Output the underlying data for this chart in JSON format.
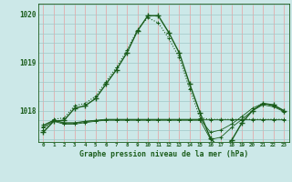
{
  "title": "Graphe pression niveau de la mer (hPa)",
  "background_color": "#cce8e8",
  "line_color": "#1a5c1a",
  "grid_color_v": "#e8a0a0",
  "grid_color_h": "#a0c8c8",
  "series_main": {
    "x": [
      0,
      1,
      2,
      3,
      4,
      5,
      6,
      7,
      8,
      9,
      10,
      11,
      12,
      13,
      14,
      15,
      16,
      17,
      18,
      19,
      20,
      21,
      22,
      23
    ],
    "y": [
      1017.55,
      1017.78,
      1017.8,
      1018.05,
      1018.1,
      1018.25,
      1018.55,
      1018.85,
      1019.2,
      1019.65,
      1019.97,
      1019.97,
      1019.62,
      1019.2,
      1018.55,
      1017.95,
      1017.42,
      1017.2,
      1017.38,
      1017.75,
      1018.0,
      1018.15,
      1018.12,
      1018.0
    ]
  },
  "series_dotted": {
    "x": [
      0,
      1,
      2,
      3,
      4,
      5,
      6,
      7,
      8,
      9,
      10,
      11,
      12,
      13,
      14,
      15,
      16,
      17,
      18,
      19,
      20,
      21,
      22,
      23
    ],
    "y": [
      1017.6,
      1017.82,
      1017.85,
      1018.1,
      1018.15,
      1018.3,
      1018.6,
      1018.9,
      1019.25,
      1019.68,
      1019.93,
      1019.82,
      1019.5,
      1019.1,
      1018.45,
      1017.85,
      1017.82,
      1017.82,
      1017.82,
      1017.82,
      1017.82,
      1017.82,
      1017.82,
      1017.82
    ]
  },
  "series_flat1": {
    "x": [
      0,
      1,
      2,
      3,
      4,
      5,
      6,
      7,
      8,
      9,
      10,
      11,
      12,
      13,
      14,
      15,
      16,
      17,
      18,
      19,
      20,
      21,
      22,
      23
    ],
    "y": [
      1017.7,
      1017.8,
      1017.75,
      1017.75,
      1017.78,
      1017.8,
      1017.82,
      1017.82,
      1017.82,
      1017.82,
      1017.82,
      1017.82,
      1017.82,
      1017.82,
      1017.82,
      1017.82,
      1017.55,
      1017.6,
      1017.72,
      1017.88,
      1018.05,
      1018.15,
      1018.1,
      1018.0
    ]
  },
  "series_flat2": {
    "x": [
      0,
      1,
      2,
      3,
      4,
      5,
      6,
      7,
      8,
      9,
      10,
      11,
      12,
      13,
      14,
      15,
      16,
      17,
      18,
      19,
      20,
      21,
      22,
      23
    ],
    "y": [
      1017.65,
      1017.78,
      1017.72,
      1017.72,
      1017.75,
      1017.78,
      1017.8,
      1017.8,
      1017.8,
      1017.8,
      1017.8,
      1017.8,
      1017.8,
      1017.8,
      1017.8,
      1017.8,
      1017.4,
      1017.45,
      1017.65,
      1017.82,
      1018.0,
      1018.12,
      1018.08,
      1017.98
    ]
  },
  "series_flat3": {
    "x": [
      0,
      1,
      2,
      3,
      4,
      5,
      6,
      7,
      8,
      9,
      10,
      11,
      12,
      13,
      14,
      15,
      16,
      17,
      18,
      19,
      20,
      21,
      22,
      23
    ],
    "y": [
      1017.68,
      1017.8,
      1017.74,
      1017.74,
      1017.77,
      1017.79,
      1017.81,
      1017.81,
      1017.81,
      1017.81,
      1017.81,
      1017.81,
      1017.81,
      1017.81,
      1017.81,
      1017.81,
      1017.81,
      1017.81,
      1017.81,
      1017.81,
      1017.81,
      1017.81,
      1017.81,
      1017.81
    ]
  },
  "ylim": [
    1017.35,
    1020.22
  ],
  "yticks": [
    1018,
    1019,
    1020
  ],
  "xlim": [
    -0.5,
    23.5
  ],
  "xticks": [
    0,
    1,
    2,
    3,
    4,
    5,
    6,
    7,
    8,
    9,
    10,
    11,
    12,
    13,
    14,
    15,
    16,
    17,
    18,
    19,
    20,
    21,
    22,
    23
  ]
}
